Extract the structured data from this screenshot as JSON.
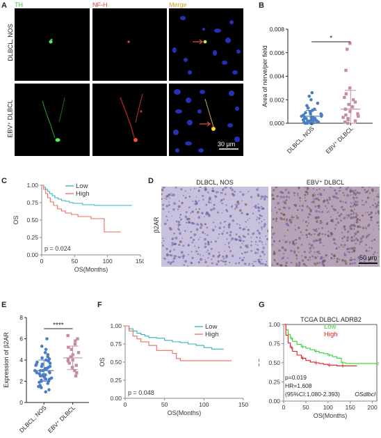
{
  "panels": {
    "A": {
      "label": "A",
      "channels": [
        "TH",
        "NF-H",
        "Merge"
      ],
      "channel_colors": [
        "#3fc23f",
        "#e8433a",
        "#d8a21c"
      ],
      "rows": [
        "DLBCL, NOS",
        "EBV⁺ DLBCL"
      ],
      "scalebar": "30 μm"
    },
    "B": {
      "label": "B"
    },
    "C": {
      "label": "C"
    },
    "D": {
      "label": "D",
      "columns": [
        "DLBCL, NOS",
        "EBV⁺ DLBCL"
      ],
      "row": "β2AR",
      "scalebar": "50 μm"
    },
    "E": {
      "label": "E"
    },
    "F": {
      "label": "F"
    },
    "G": {
      "label": "G"
    }
  },
  "chart_data": [
    {
      "id": "B",
      "type": "scatter",
      "ylabel": "Area of nerve/per field",
      "categories": [
        "DLBCL, NOS",
        "EBV⁺ DLBCL"
      ],
      "yticks": [
        "0.000",
        "0.002",
        "0.004",
        "0.006",
        "0.008"
      ],
      "ylim": [
        0,
        0.008
      ],
      "significance": "*",
      "series": [
        {
          "values": [
            0.0,
            0.0,
            0.0,
            0.0,
            0.0,
            0.0001,
            0.0001,
            0.0001,
            0.0002,
            0.0002,
            0.0002,
            0.0002,
            0.0003,
            0.0003,
            0.0003,
            0.0004,
            0.0004,
            0.0004,
            0.0005,
            0.0005,
            0.0005,
            0.0006,
            0.0006,
            0.0007,
            0.0007,
            0.0008,
            0.0008,
            0.0009,
            0.001,
            0.0011,
            0.0012,
            0.0013,
            0.0015,
            0.0017,
            0.002,
            0.0023,
            0.0026
          ],
          "mean": 0.0006,
          "sd": 0.0005,
          "color": "#4a7ec2"
        },
        {
          "values": [
            0.0,
            0.0001,
            0.0002,
            0.0003,
            0.0004,
            0.0005,
            0.0006,
            0.0007,
            0.0008,
            0.001,
            0.0012,
            0.0014,
            0.0016,
            0.0018,
            0.002,
            0.0022,
            0.0025,
            0.003,
            0.0045,
            0.0063,
            0.0068
          ],
          "mean": 0.0012,
          "sd": 0.0016,
          "color": "#c48da4"
        }
      ]
    },
    {
      "id": "C",
      "type": "line",
      "xlabel": "OS(Months)",
      "ylabel": "OS",
      "xticks": [
        "0",
        "50",
        "100",
        "150"
      ],
      "yticks": [
        "0.00",
        "0.25",
        "0.50",
        "0.75",
        "1.00"
      ],
      "xlim": [
        0,
        150
      ],
      "ylim": [
        0,
        1
      ],
      "annotation": "p = 0.024",
      "legend_position": "top-right",
      "series": [
        {
          "name": "Low",
          "color": "#2ab5bd",
          "x": [
            0,
            3,
            6,
            9,
            12,
            16,
            20,
            25,
            30,
            36,
            42,
            48,
            55,
            62,
            70,
            80,
            90,
            100,
            110,
            120,
            137
          ],
          "y": [
            1.0,
            0.97,
            0.94,
            0.91,
            0.88,
            0.85,
            0.82,
            0.8,
            0.78,
            0.77,
            0.75,
            0.74,
            0.74,
            0.72,
            0.72,
            0.71,
            0.71,
            0.71,
            0.71,
            0.71,
            0.71
          ]
        },
        {
          "name": "High",
          "color": "#ee6a5a",
          "x": [
            0,
            3,
            6,
            9,
            13,
            18,
            24,
            30,
            36,
            45,
            55,
            65,
            75,
            85,
            95,
            100,
            110,
            120
          ],
          "y": [
            1.0,
            0.94,
            0.88,
            0.82,
            0.76,
            0.71,
            0.66,
            0.63,
            0.6,
            0.58,
            0.55,
            0.55,
            0.52,
            0.52,
            0.33,
            0.33,
            0.33,
            0.33
          ]
        }
      ]
    },
    {
      "id": "E",
      "type": "scatter",
      "ylabel": "Expression of β2AR",
      "categories": [
        "DLBCL, NOS",
        "EBV⁺ DLBCL"
      ],
      "yticks": [
        "0",
        "2",
        "4",
        "6",
        "8"
      ],
      "ylim": [
        0,
        8
      ],
      "significance": "****",
      "series": [
        {
          "values": [
            1.0,
            1.2,
            1.4,
            1.5,
            1.6,
            1.8,
            1.9,
            2.0,
            2.0,
            2.1,
            2.2,
            2.2,
            2.3,
            2.4,
            2.5,
            2.5,
            2.6,
            2.6,
            2.7,
            2.8,
            2.8,
            2.9,
            3.0,
            3.0,
            3.0,
            3.1,
            3.2,
            3.2,
            3.3,
            3.4,
            3.4,
            3.5,
            3.6,
            3.6,
            3.7,
            3.8,
            3.9,
            4.0,
            4.1,
            4.2,
            4.3,
            4.5,
            4.7,
            5.0,
            5.3,
            6.0
          ],
          "mean": 3.0,
          "sd": 1.0,
          "color": "#4a7ec2"
        },
        {
          "values": [
            2.5,
            2.8,
            3.0,
            3.3,
            3.5,
            3.7,
            3.9,
            4.0,
            4.1,
            4.3,
            4.5,
            4.7,
            5.0,
            5.2,
            5.5,
            5.8,
            6.0,
            6.3
          ],
          "mean": 4.2,
          "sd": 1.1,
          "color": "#c48da4"
        }
      ]
    },
    {
      "id": "F",
      "type": "line",
      "xlabel": "OS(Months)",
      "ylabel": "OS",
      "xticks": [
        "0",
        "50",
        "100",
        "150"
      ],
      "yticks": [
        "0.00",
        "0.25",
        "0.50",
        "0.75",
        "1.00"
      ],
      "xlim": [
        0,
        150
      ],
      "ylim": [
        0,
        1
      ],
      "annotation": "p = 0.048",
      "legend_position": "top-right",
      "series": [
        {
          "name": "Low",
          "color": "#2ab5bd",
          "x": [
            0,
            5,
            10,
            15,
            20,
            25,
            30,
            40,
            50,
            60,
            70,
            80,
            90,
            100,
            110,
            125
          ],
          "y": [
            1.0,
            0.96,
            0.93,
            0.9,
            0.88,
            0.86,
            0.84,
            0.83,
            0.8,
            0.78,
            0.77,
            0.75,
            0.73,
            0.7,
            0.68,
            0.68
          ]
        },
        {
          "name": "High",
          "color": "#ee6a5a",
          "x": [
            0,
            5,
            10,
            15,
            20,
            30,
            40,
            50,
            60,
            65,
            70,
            80,
            100,
            120,
            135
          ],
          "y": [
            1.0,
            0.93,
            0.86,
            0.82,
            0.78,
            0.73,
            0.66,
            0.66,
            0.62,
            0.55,
            0.52,
            0.52,
            0.52,
            0.52,
            0.52
          ]
        }
      ]
    },
    {
      "id": "G",
      "type": "line",
      "title": "TCGA DLBCL ADRB2",
      "xlabel": "OS(Months)",
      "ylabel": "OS",
      "xticks": [
        "0",
        "50",
        "100",
        "150",
        "200"
      ],
      "yticks": [
        "0.00",
        "0.25",
        "0.50",
        "0.75",
        "1.00"
      ],
      "xlim": [
        0,
        210
      ],
      "ylim": [
        0,
        1
      ],
      "annotations": [
        "p=0.019",
        "HR=1.608",
        "(95%CI:1.080-2.393)"
      ],
      "annotation_italic": "OSdlbcl",
      "legend_position": "top-right",
      "series": [
        {
          "name": "Low",
          "color": "#2fd62f",
          "x": [
            0,
            5,
            10,
            15,
            20,
            30,
            40,
            50,
            60,
            70,
            80,
            90,
            100,
            110,
            120,
            130,
            140,
            150,
            210
          ],
          "y": [
            1.0,
            0.93,
            0.87,
            0.82,
            0.78,
            0.74,
            0.71,
            0.69,
            0.67,
            0.65,
            0.63,
            0.62,
            0.6,
            0.58,
            0.56,
            0.5,
            0.49,
            0.49,
            0.49
          ]
        },
        {
          "name": "High",
          "color": "#e31a1c",
          "x": [
            0,
            5,
            10,
            15,
            20,
            30,
            40,
            50,
            60,
            70,
            80,
            90,
            100,
            110,
            120,
            130,
            150,
            165
          ],
          "y": [
            1.0,
            0.86,
            0.76,
            0.7,
            0.65,
            0.6,
            0.56,
            0.53,
            0.51,
            0.5,
            0.49,
            0.48,
            0.47,
            0.47,
            0.46,
            0.46,
            0.46,
            0.46
          ]
        }
      ]
    }
  ]
}
